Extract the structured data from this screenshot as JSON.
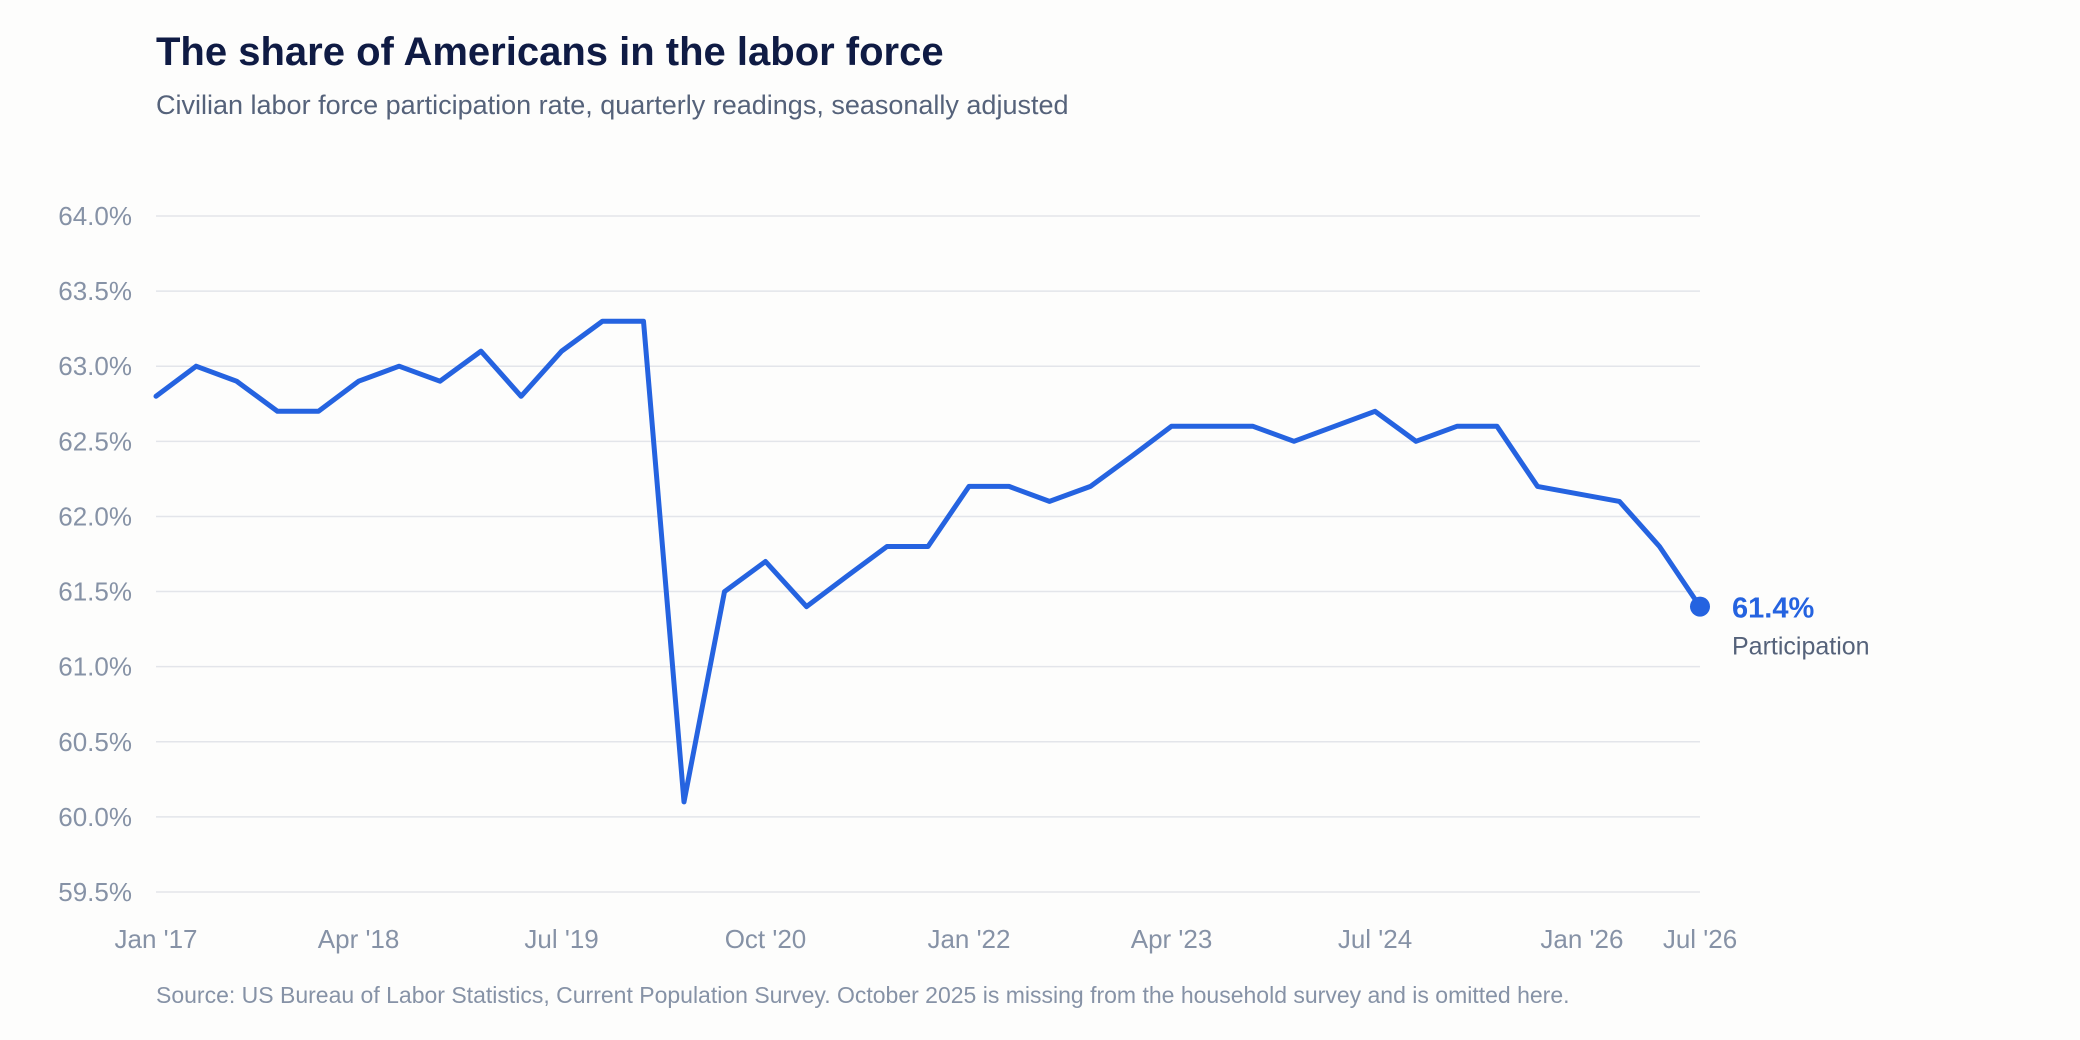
{
  "chart_data": {
    "type": "line",
    "title": "The share of Americans in the labor force",
    "subtitle": "Civilian labor force participation rate, quarterly readings, seasonally adjusted",
    "source": "Source: US Bureau of Labor Statistics, Current Population Survey. October 2025 is missing from the household survey and is omitted here.",
    "ylim": [
      59.5,
      64.0
    ],
    "y_ticks": [
      {
        "value": 59.5,
        "label": "59.5%"
      },
      {
        "value": 60.0,
        "label": "60.0%"
      },
      {
        "value": 60.5,
        "label": "60.5%"
      },
      {
        "value": 61.0,
        "label": "61.0%"
      },
      {
        "value": 61.5,
        "label": "61.5%"
      },
      {
        "value": 62.0,
        "label": "62.0%"
      },
      {
        "value": 62.5,
        "label": "62.5%"
      },
      {
        "value": 63.0,
        "label": "63.0%"
      },
      {
        "value": 63.5,
        "label": "63.5%"
      },
      {
        "value": 64.0,
        "label": "64.0%"
      }
    ],
    "x_ticks": [
      {
        "x": "2017-01",
        "label": "Jan '17"
      },
      {
        "x": "2018-04",
        "label": "Apr '18"
      },
      {
        "x": "2019-07",
        "label": "Jul '19"
      },
      {
        "x": "2020-10",
        "label": "Oct '20"
      },
      {
        "x": "2022-01",
        "label": "Jan '22"
      },
      {
        "x": "2023-04",
        "label": "Apr '23"
      },
      {
        "x": "2024-07",
        "label": "Jul '24"
      },
      {
        "x": "2026-01",
        "label": "Jan '26"
      },
      {
        "x": "2026-07",
        "label": "Jul '26"
      }
    ],
    "grid": true,
    "series": [
      {
        "name": "Participation",
        "color": "#2563e0",
        "x": [
          "2017-01",
          "2017-04",
          "2017-07",
          "2017-10",
          "2018-01",
          "2018-04",
          "2018-07",
          "2018-10",
          "2019-01",
          "2019-04",
          "2019-07",
          "2019-10",
          "2020-01",
          "2020-04",
          "2020-07",
          "2020-10",
          "2021-01",
          "2021-04",
          "2021-07",
          "2021-10",
          "2022-01",
          "2022-04",
          "2022-07",
          "2022-10",
          "2023-01",
          "2023-04",
          "2023-07",
          "2023-10",
          "2024-01",
          "2024-04",
          "2024-07",
          "2024-10",
          "2025-01",
          "2025-04",
          "2025-07",
          "2026-01",
          "2026-04",
          "2026-07"
        ],
        "values": [
          62.8,
          63.0,
          62.9,
          62.7,
          62.7,
          62.9,
          63.0,
          62.9,
          63.1,
          62.8,
          63.1,
          63.3,
          63.3,
          60.1,
          61.5,
          61.7,
          61.4,
          61.6,
          61.8,
          61.8,
          62.2,
          62.2,
          62.1,
          62.2,
          62.4,
          62.6,
          62.6,
          62.6,
          62.5,
          62.6,
          62.7,
          62.5,
          62.6,
          62.6,
          62.2,
          62.1,
          61.8,
          61.4
        ]
      }
    ],
    "end_annotation": {
      "value_label": "61.4%",
      "series_label": "Participation"
    }
  }
}
